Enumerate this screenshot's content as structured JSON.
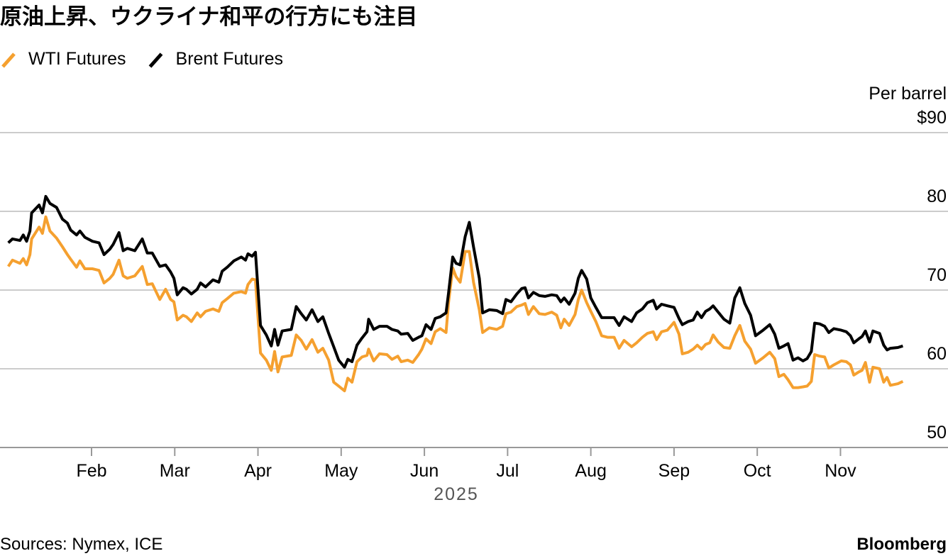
{
  "chart_data": {
    "type": "line",
    "title": "原油上昇、ウクライナ和平の行方にも注目",
    "y_axis_label": "Per barrel",
    "x_axis_label": "2025",
    "source": "Sources: Nymex, ICE",
    "brand": "Bloomberg",
    "grid": true,
    "legend": "top-left",
    "xlim": [
      0.9,
      11.9
    ],
    "xticks": [
      {
        "value": 2,
        "label": "Feb"
      },
      {
        "value": 3,
        "label": "Mar"
      },
      {
        "value": 4,
        "label": "Apr"
      },
      {
        "value": 5,
        "label": "May"
      },
      {
        "value": 6,
        "label": "Jun"
      },
      {
        "value": 7,
        "label": "Jul"
      },
      {
        "value": 8,
        "label": "Aug"
      },
      {
        "value": 9,
        "label": "Sep"
      },
      {
        "value": 10,
        "label": "Oct"
      },
      {
        "value": 11,
        "label": "Nov"
      }
    ],
    "ylim": [
      50,
      90
    ],
    "yticks": [
      50,
      60,
      70,
      80,
      {
        "value": 90,
        "label": "$90"
      }
    ],
    "x": [
      1.0,
      1.05,
      1.14,
      1.18,
      1.22,
      1.26,
      1.28,
      1.37,
      1.41,
      1.45,
      1.5,
      1.58,
      1.65,
      1.71,
      1.75,
      1.82,
      1.86,
      1.92,
      2.01,
      2.09,
      2.15,
      2.22,
      2.26,
      2.33,
      2.38,
      2.43,
      2.52,
      2.61,
      2.67,
      2.73,
      2.82,
      2.89,
      2.95,
      2.99,
      3.03,
      3.1,
      3.14,
      3.2,
      3.27,
      3.31,
      3.37,
      3.46,
      3.53,
      3.57,
      3.63,
      3.71,
      3.8,
      3.85,
      3.88,
      3.93,
      3.97,
      4.03,
      4.1,
      4.16,
      4.2,
      4.24,
      4.29,
      4.4,
      4.46,
      4.52,
      4.58,
      4.65,
      4.72,
      4.78,
      4.85,
      4.91,
      4.97,
      5.04,
      5.08,
      5.13,
      5.19,
      5.25,
      5.31,
      5.33,
      5.39,
      5.46,
      5.55,
      5.61,
      5.68,
      5.72,
      5.8,
      5.86,
      5.93,
      5.97,
      6.02,
      6.08,
      6.13,
      6.19,
      6.26,
      6.29,
      6.34,
      6.38,
      6.43,
      6.49,
      6.54,
      6.59,
      6.66,
      6.7,
      6.78,
      6.87,
      6.94,
      6.98,
      7.04,
      7.11,
      7.17,
      7.21,
      7.25,
      7.31,
      7.38,
      7.45,
      7.53,
      7.59,
      7.64,
      7.68,
      7.74,
      7.81,
      7.85,
      7.89,
      7.95,
      8.0,
      8.06,
      8.13,
      8.2,
      8.28,
      8.34,
      8.4,
      8.49,
      8.55,
      8.62,
      8.68,
      8.75,
      8.79,
      8.85,
      8.92,
      9.0,
      9.06,
      9.1,
      9.17,
      9.23,
      9.28,
      9.33,
      9.38,
      9.43,
      9.47,
      9.53,
      9.6,
      9.67,
      9.73,
      9.79,
      9.85,
      9.92,
      9.98,
      10.07,
      10.15,
      10.21,
      10.26,
      10.32,
      10.37,
      10.43,
      10.49,
      10.55,
      10.6,
      10.65,
      10.69,
      10.75,
      10.81,
      10.86,
      10.92,
      11.01,
      11.07,
      11.12,
      11.16,
      11.22,
      11.26,
      11.3,
      11.35,
      11.39,
      11.47,
      11.52,
      11.56,
      11.6,
      11.69,
      11.75
    ],
    "series": [
      {
        "name": "WTI Futures",
        "color": "#f5a02f",
        "values": [
          73.0,
          73.8,
          73.4,
          74.0,
          73.2,
          74.5,
          76.5,
          78.0,
          77.2,
          79.3,
          77.5,
          76.6,
          75.5,
          74.5,
          73.9,
          72.9,
          73.7,
          72.7,
          72.7,
          72.5,
          70.9,
          71.5,
          72.0,
          73.8,
          71.8,
          71.5,
          71.8,
          73.0,
          70.7,
          70.8,
          68.8,
          70.1,
          68.8,
          68.5,
          66.2,
          66.8,
          66.6,
          66.0,
          67.1,
          66.6,
          67.3,
          67.6,
          67.3,
          68.4,
          68.9,
          69.6,
          69.8,
          69.6,
          70.7,
          71.4,
          71.3,
          62.0,
          61.1,
          59.8,
          62.2,
          59.6,
          61.5,
          61.7,
          64.3,
          63.6,
          62.5,
          63.7,
          62.1,
          62.6,
          61.1,
          58.3,
          57.8,
          57.2,
          58.8,
          58.3,
          60.9,
          61.5,
          61.7,
          62.5,
          61.0,
          61.9,
          61.8,
          61.2,
          61.6,
          60.9,
          61.1,
          60.8,
          61.8,
          62.5,
          63.8,
          63.2,
          64.7,
          65.1,
          64.6,
          68.4,
          72.8,
          71.7,
          71.0,
          74.9,
          74.9,
          71.0,
          67.5,
          64.6,
          65.2,
          65.0,
          65.4,
          67.0,
          67.2,
          67.9,
          68.1,
          68.3,
          66.9,
          67.9,
          67.0,
          66.9,
          67.2,
          66.8,
          65.2,
          66.3,
          65.5,
          66.9,
          68.8,
          70.0,
          68.4,
          67.3,
          66.0,
          64.2,
          64.0,
          64.0,
          62.6,
          63.6,
          62.8,
          63.3,
          64.0,
          64.5,
          64.7,
          63.7,
          64.7,
          64.9,
          65.9,
          64.4,
          61.9,
          62.1,
          62.5,
          63.0,
          62.5,
          63.1,
          63.3,
          64.3,
          63.4,
          62.7,
          62.6,
          64.2,
          65.5,
          63.5,
          62.5,
          60.7,
          61.4,
          62.1,
          61.3,
          59.0,
          59.3,
          58.6,
          57.6,
          57.6,
          57.7,
          57.8,
          58.4,
          61.8,
          61.6,
          61.5,
          60.1,
          60.5,
          61.0,
          60.9,
          60.5,
          59.2,
          59.6,
          59.8,
          60.8,
          58.3,
          60.2,
          60.0,
          58.3,
          58.9,
          57.9,
          58.1,
          58.4
        ]
      },
      {
        "name": "Brent Futures",
        "color": "#000000",
        "values": [
          76.0,
          76.5,
          76.3,
          77.0,
          76.2,
          77.5,
          79.8,
          80.8,
          79.8,
          81.9,
          81.0,
          80.5,
          79.0,
          78.5,
          77.6,
          77.0,
          77.5,
          76.7,
          76.2,
          76.0,
          74.5,
          75.2,
          75.8,
          77.3,
          75.0,
          75.3,
          75.0,
          76.5,
          74.7,
          74.7,
          73.0,
          73.2,
          72.3,
          71.5,
          69.4,
          70.3,
          70.1,
          69.5,
          70.1,
          70.9,
          70.4,
          71.3,
          71.0,
          72.4,
          72.9,
          73.7,
          74.2,
          73.8,
          74.6,
          74.3,
          74.8,
          65.5,
          64.3,
          62.9,
          65.0,
          63.0,
          64.8,
          65.0,
          67.9,
          67.0,
          66.2,
          67.5,
          66.0,
          66.6,
          64.5,
          62.8,
          61.1,
          60.2,
          61.2,
          60.9,
          63.0,
          63.9,
          64.7,
          66.3,
          65.0,
          65.4,
          65.4,
          65.0,
          64.8,
          64.4,
          64.5,
          63.6,
          64.0,
          64.2,
          65.6,
          65.0,
          66.4,
          66.6,
          67.1,
          69.6,
          74.2,
          73.4,
          73.2,
          76.8,
          78.6,
          75.5,
          71.5,
          67.1,
          67.5,
          67.4,
          67.0,
          68.8,
          68.5,
          69.5,
          70.2,
          70.3,
          69.0,
          69.7,
          69.3,
          69.2,
          69.4,
          69.3,
          68.5,
          69.0,
          68.2,
          69.6,
          71.5,
          72.5,
          71.4,
          69.0,
          67.8,
          66.5,
          66.5,
          66.5,
          65.5,
          66.6,
          66.0,
          67.1,
          67.6,
          68.4,
          68.7,
          67.6,
          68.2,
          68.0,
          67.8,
          66.4,
          65.6,
          66.0,
          66.2,
          67.2,
          66.5,
          67.3,
          67.6,
          68.0,
          67.2,
          66.3,
          65.8,
          69.0,
          70.3,
          68.3,
          66.8,
          64.2,
          64.9,
          65.6,
          64.4,
          62.6,
          62.9,
          63.2,
          61.1,
          61.4,
          61.0,
          61.3,
          62.2,
          65.8,
          65.7,
          65.4,
          64.6,
          65.1,
          64.9,
          64.7,
          64.2,
          63.3,
          63.8,
          64.1,
          64.8,
          63.4,
          64.8,
          64.5,
          63.0,
          62.4,
          62.6,
          62.7,
          62.9
        ]
      }
    ]
  }
}
